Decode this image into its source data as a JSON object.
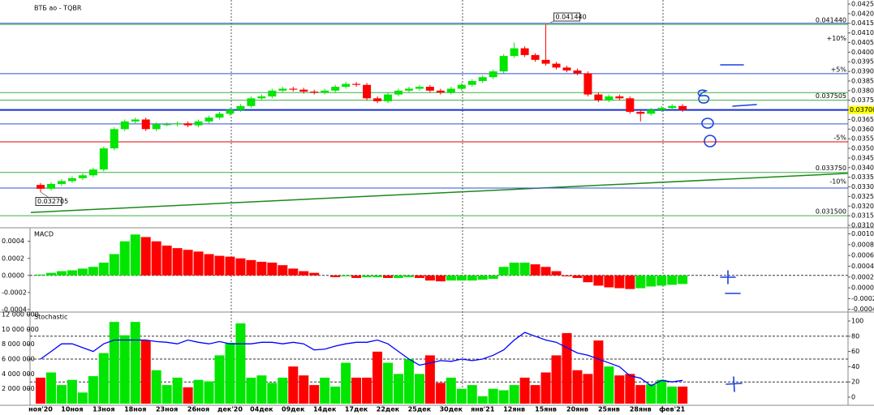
{
  "chart_data": [
    {
      "type": "candlestick",
      "title": "ВТБ ао - TQBR",
      "categories": [
        "ноя'20",
        null,
        null,
        "10ноя",
        null,
        null,
        "13ноя",
        null,
        null,
        "18ноя",
        null,
        null,
        "23ноя",
        null,
        null,
        "26ноя",
        null,
        null,
        "дек'20",
        null,
        null,
        "04дек",
        null,
        null,
        "09дек",
        null,
        null,
        "14дек",
        null,
        null,
        "17дек",
        null,
        null,
        "22дек",
        null,
        null,
        "25дек",
        null,
        null,
        "30дек",
        null,
        null,
        "янв'21",
        null,
        null,
        "12янв",
        null,
        null,
        "15янв",
        null,
        null,
        "20янв",
        null,
        null,
        "25янв",
        null,
        null,
        "28янв",
        null,
        null,
        "фев'21",
        null
      ],
      "open": [
        0.0331,
        0.0329,
        0.03315,
        0.0333,
        0.03345,
        0.0336,
        0.0339,
        0.035,
        0.036,
        0.0364,
        0.0365,
        0.036,
        0.03625,
        0.03625,
        0.0363,
        0.0362,
        0.0364,
        0.0366,
        0.0368,
        0.037,
        0.0372,
        0.0376,
        0.0377,
        0.038,
        0.0381,
        0.03805,
        0.03795,
        0.0379,
        0.038,
        0.0382,
        0.03835,
        0.0383,
        0.0376,
        0.03745,
        0.0378,
        0.038,
        0.0381,
        0.0382,
        0.038,
        0.0379,
        0.0381,
        0.0383,
        0.0385,
        0.0387,
        0.039,
        0.0398,
        0.0402,
        0.03985,
        0.0396,
        0.0394,
        0.0392,
        0.03905,
        0.0389,
        0.0378,
        0.0375,
        0.0377,
        0.0376,
        0.0369,
        0.0368,
        0.037,
        0.0371,
        0.0372
      ],
      "high": [
        0.0332,
        0.03325,
        0.0334,
        0.03355,
        0.0337,
        0.034,
        0.0351,
        0.0361,
        0.0365,
        0.0366,
        0.0366,
        0.03635,
        0.03635,
        0.0364,
        0.0364,
        0.0365,
        0.0367,
        0.0369,
        0.0371,
        0.0373,
        0.0377,
        0.0378,
        0.0381,
        0.0382,
        0.0382,
        0.03815,
        0.03805,
        0.0381,
        0.0383,
        0.03845,
        0.03845,
        0.0384,
        0.0377,
        0.0379,
        0.0381,
        0.0382,
        0.0383,
        0.0383,
        0.0381,
        0.0382,
        0.0384,
        0.0386,
        0.0388,
        0.0391,
        0.0399,
        0.0405,
        0.0403,
        0.03995,
        0.04144,
        0.0395,
        0.0393,
        0.03915,
        0.039,
        0.0379,
        0.0378,
        0.0378,
        0.0377,
        0.037,
        0.0371,
        0.0372,
        0.0373,
        0.0373
      ],
      "low": [
        0.032705,
        0.0328,
        0.03305,
        0.0332,
        0.03335,
        0.0335,
        0.0338,
        0.0349,
        0.0359,
        0.0363,
        0.0359,
        0.0359,
        0.03615,
        0.03615,
        0.0361,
        0.0361,
        0.0363,
        0.0365,
        0.0367,
        0.0369,
        0.0371,
        0.0375,
        0.0376,
        0.0379,
        0.03795,
        0.03785,
        0.0378,
        0.0378,
        0.0379,
        0.0381,
        0.0382,
        0.0375,
        0.03735,
        0.03735,
        0.0377,
        0.0379,
        0.038,
        0.0379,
        0.0378,
        0.0378,
        0.038,
        0.0382,
        0.0384,
        0.0386,
        0.0389,
        0.0397,
        0.03975,
        0.0395,
        0.0393,
        0.0391,
        0.03895,
        0.0388,
        0.0377,
        0.0374,
        0.0374,
        0.0375,
        0.0368,
        0.0364,
        0.0367,
        0.0369,
        0.037,
        0.0369
      ],
      "close": [
        0.0329,
        0.03315,
        0.0333,
        0.03345,
        0.0336,
        0.0339,
        0.035,
        0.036,
        0.0364,
        0.0365,
        0.036,
        0.03625,
        0.03625,
        0.0363,
        0.0362,
        0.0364,
        0.0366,
        0.0368,
        0.037,
        0.0372,
        0.0376,
        0.0377,
        0.038,
        0.0381,
        0.03805,
        0.03795,
        0.0379,
        0.038,
        0.0382,
        0.03835,
        0.0383,
        0.0376,
        0.03745,
        0.0378,
        0.038,
        0.0381,
        0.0382,
        0.038,
        0.0379,
        0.0381,
        0.0383,
        0.0385,
        0.0387,
        0.039,
        0.0398,
        0.0402,
        0.03985,
        0.0396,
        0.0394,
        0.0392,
        0.03905,
        0.0389,
        0.0378,
        0.0375,
        0.0377,
        0.0376,
        0.0369,
        0.0368,
        0.037,
        0.0371,
        0.0372,
        0.037
      ],
      "up_color": "#00e600",
      "down_color": "#ff0000",
      "ylim": [
        0.031,
        0.0425
      ],
      "yticks": [
        {
          "value": 0.031,
          "label": "0.0310"
        },
        0.0315,
        {
          "value": 0.032,
          "label": "0.0320"
        },
        0.0325,
        {
          "value": 0.033,
          "label": "0.0330"
        },
        0.0335,
        {
          "value": 0.034,
          "label": "0.0340"
        },
        0.0345,
        {
          "value": 0.035,
          "label": "0.0350"
        },
        0.0355,
        {
          "value": 0.036,
          "label": "0.0360"
        },
        0.0365,
        {
          "value": 0.037,
          "label": "0.0370"
        },
        0.0375,
        {
          "value": 0.038,
          "label": "0.0380"
        },
        0.0385,
        {
          "value": 0.039,
          "label": "0.0390"
        },
        0.0395,
        {
          "value": 0.04,
          "label": "0.0400"
        },
        0.0405,
        {
          "value": 0.041,
          "label": "0.0410"
        },
        0.0415,
        {
          "value": 0.042,
          "label": "0.0420"
        },
        0.0425
      ],
      "levels": [
        {
          "value": 0.04144,
          "label": "0.041440",
          "color": "#3cb043"
        },
        {
          "value": 0.0415,
          "color": "#3050d0"
        },
        {
          "value": 0.0407,
          "label": "+10%",
          "color": "#00a000",
          "line": false
        },
        {
          "value": 0.03888,
          "label": "+5%",
          "color": "#3050d0"
        },
        {
          "value": 0.0379,
          "color": "#3cb043"
        },
        {
          "value": 0.037505,
          "label": "0.037505",
          "color": "#3cb043"
        },
        {
          "value": 0.037,
          "label": "0.037000",
          "color": "#1a2fd0",
          "background": "#ffff00"
        },
        {
          "value": 0.03627,
          "color": "#3050d0"
        },
        {
          "value": 0.03534,
          "label": "-5%",
          "color": "#e00000"
        },
        {
          "value": 0.03375,
          "label": "0.033750",
          "color": "#3cb043"
        },
        {
          "value": 0.03327,
          "label": "-10%",
          "color": "#e00000",
          "line": false
        },
        {
          "value": 0.03294,
          "color": "#3050d0"
        },
        {
          "value": 0.0315,
          "label": "0.031500",
          "color": "#3cb043"
        }
      ],
      "annotations": [
        {
          "text": "0.032705",
          "value": 0.032705,
          "index": 0
        },
        {
          "text": "0.041440",
          "value": 0.04144,
          "index": 48
        }
      ],
      "trendlines": [
        {
          "color": "#1a8a1a",
          "start": [
            -0.93,
            0.03167
          ],
          "end": [
            76.7,
            0.0337
          ]
        }
      ]
    },
    {
      "type": "bar",
      "title": "MACD",
      "values": [
        1e-05,
        3e-05,
        5e-05,
        6e-05,
        8e-05,
        0.0001,
        0.00015,
        0.00025,
        0.0004,
        0.00048,
        0.00045,
        0.0004,
        0.00035,
        0.00032,
        0.0003,
        0.00028,
        0.00025,
        0.00023,
        0.00022,
        0.0002,
        0.00018,
        0.00016,
        0.00015,
        0.00012,
        8e-05,
        5e-05,
        3e-05,
        0,
        -2e-05,
        -1e-05,
        -3e-05,
        -2e-05,
        -2e-05,
        -3e-05,
        -3e-05,
        -2e-05,
        -3e-05,
        -6e-05,
        -7e-05,
        -6e-05,
        -6e-05,
        -6e-05,
        -5e-05,
        -4e-05,
        0.0001,
        0.00015,
        0.00015,
        0.00013,
        0.0001,
        5e-05,
        -1e-05,
        -3e-05,
        -8e-05,
        -0.00012,
        -0.00014,
        -0.00015,
        -0.00016,
        -0.00015,
        -0.00013,
        -0.00012,
        -0.00011,
        -0.0001
      ],
      "up_color": "#00e600",
      "down_color": "#ff0000",
      "ylim": [
        -0.00043,
        0.00054
      ],
      "yticks": [
        0.0004,
        0.0002,
        {
          "value": 0,
          "label": "0.0000"
        },
        -0.0002,
        -0.0004
      ],
      "y2lim": [
        -0.00045,
        0.001083
      ],
      "y2ticks": [
        {
          "value": 0.001,
          "label": "0.0010"
        },
        0.0008,
        0.0006,
        0.0004,
        0.0002,
        {
          "value": 0,
          "label": "0.0000"
        },
        -0.0002,
        -0.0004
      ]
    },
    {
      "type": "bar",
      "title": "Stochastic",
      "series": [
        {
          "values": [
            3500000,
            4200000,
            2500000,
            3200000,
            1500000,
            3700000,
            6800000,
            11000000,
            9200000,
            11000000,
            8500000,
            4500000,
            2500000,
            3500000,
            2200000,
            3200000,
            3000000,
            6500000,
            8200000,
            10800000,
            3500000,
            3800000,
            2800000,
            3500000,
            5000000,
            3800000,
            2500000,
            3500000,
            2300000,
            5500000,
            3500000,
            3500000,
            7000000,
            5500000,
            4000000,
            6000000,
            4000000,
            6500000,
            2800000,
            3500000,
            2000000,
            2500000,
            1000000,
            2000000,
            1800000,
            2500000,
            3500000,
            2500000,
            4200000,
            6500000,
            9500000,
            4500000,
            4000000,
            8500000,
            5000000,
            3800000,
            4000000,
            2500000,
            2600000,
            3200000,
            2300000,
            2300000
          ]
        },
        {
          "values": [
            50,
            60,
            70,
            70,
            65,
            60,
            70,
            75,
            75,
            75,
            75,
            73,
            72,
            70,
            75,
            72,
            70,
            73,
            70,
            70,
            70,
            72,
            72,
            70,
            72,
            70,
            62,
            63,
            67,
            70,
            72,
            72,
            75,
            70,
            60,
            50,
            42,
            45,
            48,
            47,
            50,
            48,
            50,
            55,
            62,
            75,
            85,
            80,
            75,
            72,
            65,
            58,
            55,
            50,
            45,
            40,
            28,
            25,
            15,
            22,
            20,
            22
          ],
          "axis": "y2",
          "color": "#0000ff"
        }
      ],
      "ylim": [
        0,
        12000000
      ],
      "yticks": [
        {
          "value": 2000000,
          "label": "2 000 000"
        },
        {
          "value": 4000000,
          "label": "4 000 000"
        },
        {
          "value": 6000000,
          "label": "6 000 000"
        },
        {
          "value": 8000000,
          "label": "8 000 000"
        },
        {
          "value": 10000000,
          "label": "10 000 000"
        },
        {
          "value": 12000000,
          "label": "12 000 000"
        }
      ],
      "y2lim": [
        0,
        100
      ],
      "y2ticks": [
        0,
        20,
        40,
        60,
        80,
        100
      ],
      "levels": [
        20,
        50,
        80
      ]
    }
  ]
}
